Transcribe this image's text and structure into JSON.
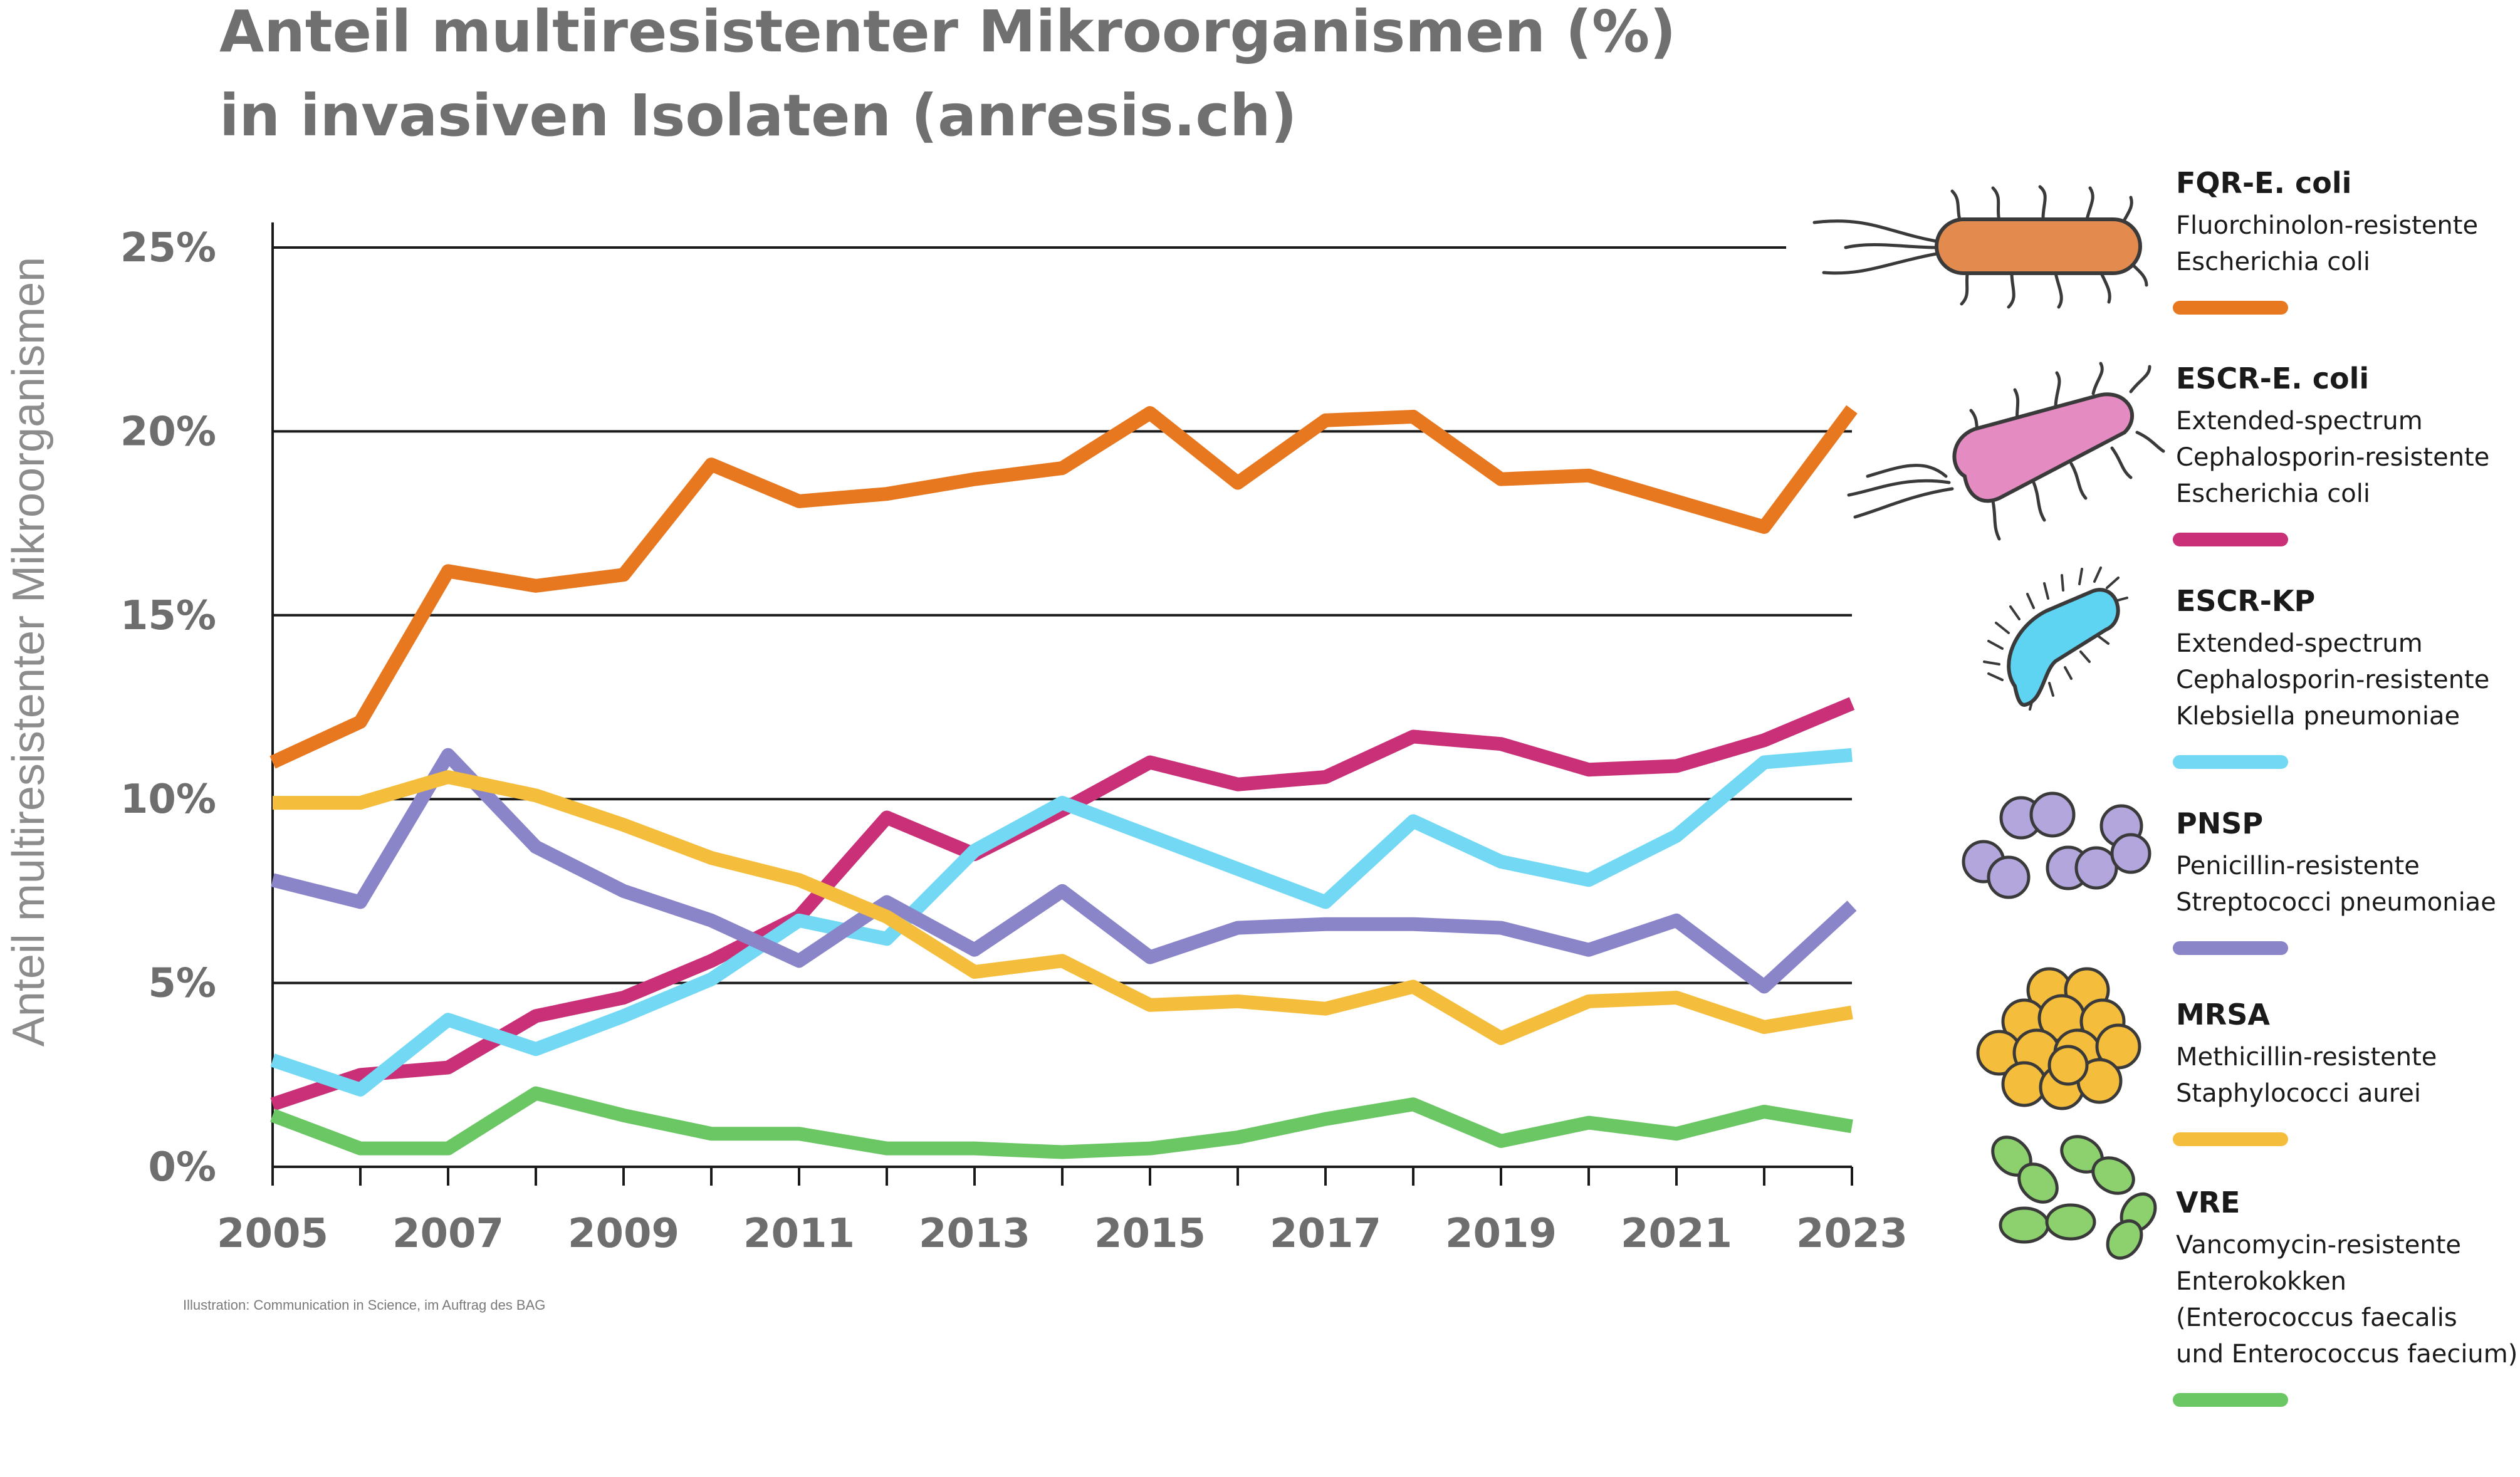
{
  "chart_data": {
    "type": "line",
    "title": [
      "Anteil multiresistenter Mikroorganismen (%)",
      "in invasiven Isolaten (anresis.ch)"
    ],
    "ylabel": "Anteil multiresistenter Mikroorganismen",
    "xlabel": "",
    "ylim": [
      0,
      25
    ],
    "y_ticks": [
      0,
      5,
      10,
      15,
      20,
      25
    ],
    "y_tick_labels": [
      "0%",
      "5%",
      "10%",
      "15%",
      "20%",
      "25%"
    ],
    "x_tick_labels": [
      "2005",
      "2007",
      "2009",
      "2011",
      "2013",
      "2015",
      "2017",
      "2019",
      "2021",
      "2023"
    ],
    "x": [
      2005,
      2006,
      2007,
      2008,
      2009,
      2010,
      2011,
      2012,
      2013,
      2014,
      2015,
      2016,
      2017,
      2018,
      2019,
      2020,
      2021,
      2022,
      2023
    ],
    "grid": "horizontal",
    "legend_position": "right",
    "series": [
      {
        "name": "FQR-E. coli",
        "desc": [
          "Fluorchinolon-resistente",
          "Escherichia coli"
        ],
        "color": "#e8781f",
        "values": [
          11.0,
          12.1,
          16.2,
          15.8,
          16.1,
          19.1,
          18.1,
          18.3,
          18.7,
          19.0,
          20.5,
          18.6,
          20.3,
          20.4,
          18.7,
          18.8,
          18.1,
          17.4,
          20.6
        ]
      },
      {
        "name": "ESCR-E. coli",
        "desc": [
          "Extended-spectrum",
          "Cephalosporin-resistente",
          "Escherichia coli"
        ],
        "color": "#c93078",
        "values": [
          1.7,
          2.5,
          2.7,
          4.1,
          4.6,
          5.6,
          6.8,
          9.5,
          8.5,
          9.7,
          11.0,
          10.4,
          10.6,
          11.7,
          11.5,
          10.8,
          10.9,
          11.6,
          12.6
        ]
      },
      {
        "name": "ESCR-KP",
        "desc": [
          "Extended-spectrum",
          "Cephalosporin-resistente",
          "Klebsiella pneumoniae"
        ],
        "color": "#72d8f4",
        "values": [
          2.9,
          2.1,
          4.0,
          3.2,
          4.1,
          5.1,
          6.7,
          6.2,
          8.6,
          9.9,
          9.0,
          8.1,
          7.2,
          9.4,
          8.3,
          7.8,
          9.0,
          11.0,
          11.2
        ]
      },
      {
        "name": "PNSP",
        "desc": [
          "Penicillin-resistente",
          "Streptococci pneumoniae"
        ],
        "color": "#8a84c8",
        "values": [
          7.8,
          7.2,
          11.2,
          8.7,
          7.5,
          6.7,
          5.6,
          7.2,
          5.9,
          7.5,
          5.7,
          6.5,
          6.6,
          6.6,
          6.5,
          5.9,
          6.7,
          4.9,
          7.1
        ]
      },
      {
        "name": "MRSA",
        "desc": [
          "Methicillin-resistente",
          "Staphylococci aurei"
        ],
        "color": "#f5bd3c",
        "values": [
          9.9,
          9.9,
          10.6,
          10.1,
          9.3,
          8.4,
          7.8,
          6.8,
          5.3,
          5.6,
          4.4,
          4.5,
          4.3,
          4.9,
          3.5,
          4.5,
          4.6,
          3.8,
          4.2
        ]
      },
      {
        "name": "VRE",
        "desc": [
          "Vancomycin-resistente",
          "Enterokokken",
          "(Enterococcus faecalis",
          "und Enterococcus faecium)"
        ],
        "color": "#6ac764",
        "values": [
          1.4,
          0.5,
          0.5,
          2.0,
          1.4,
          0.9,
          0.9,
          0.5,
          0.5,
          0.4,
          0.5,
          0.8,
          1.3,
          1.7,
          0.7,
          1.2,
          0.9,
          1.5,
          1.1
        ]
      }
    ]
  },
  "credit": "Illustration: Communication in Science, im Auftrag des BAG",
  "legend_icons": [
    "rod-bacterium-icon-orange",
    "rod-bacterium-icon-pink",
    "rod-bacterium-icon-blue",
    "diplococci-icon-purple",
    "staphylococci-cluster-icon-yellow",
    "enterococci-chain-icon-green"
  ]
}
